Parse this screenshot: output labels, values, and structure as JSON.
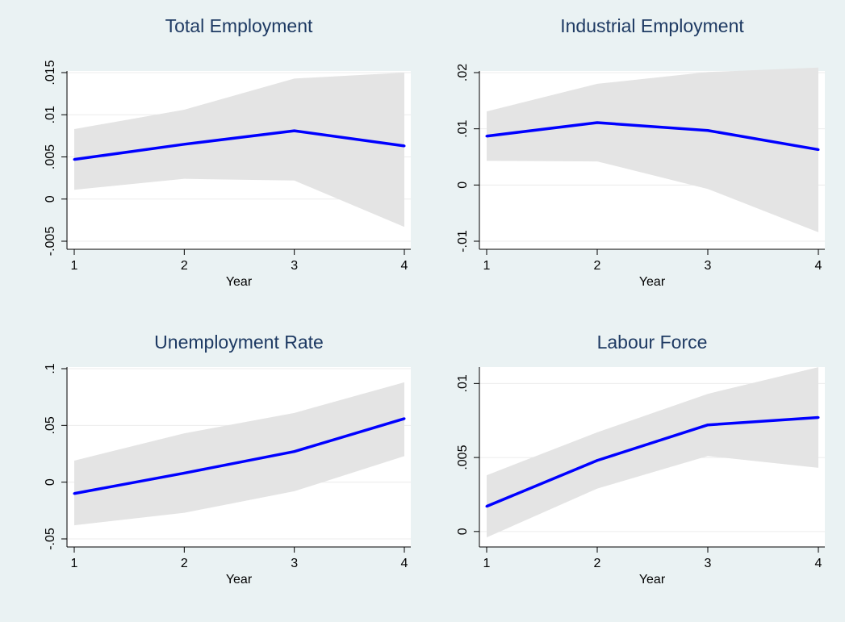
{
  "figure": {
    "colors": {
      "background": "#eaf2f3",
      "plot_area": "#ffffff",
      "line": "#0000ff",
      "band": "#e4e4e4",
      "grid": "#ececec",
      "title": "#1e3a63"
    }
  },
  "chart_data": [
    {
      "type": "line",
      "title": "Total Employment",
      "xlabel": "Year",
      "ylabel": "",
      "x": [
        1,
        2,
        3,
        4
      ],
      "x_tick_labels": [
        "1",
        "2",
        "3",
        "4"
      ],
      "ylim": [
        -0.005,
        0.015
      ],
      "y_ticks": [
        -0.005,
        0,
        0.005,
        0.01,
        0.015
      ],
      "y_tick_labels": [
        "-.005",
        "0",
        ".005",
        ".01",
        ".015"
      ],
      "grid": true,
      "series": [
        {
          "values": [
            0.0047,
            0.0065,
            0.0081,
            0.0063
          ],
          "ci_lower": [
            0.0011,
            0.0024,
            0.0022,
            -0.0033
          ],
          "ci_upper": [
            0.0083,
            0.0106,
            0.0143,
            0.015
          ]
        }
      ]
    },
    {
      "type": "line",
      "title": "Industrial Employment",
      "xlabel": "Year",
      "ylabel": "",
      "x": [
        1,
        2,
        3,
        4
      ],
      "x_tick_labels": [
        "1",
        "2",
        "3",
        "4"
      ],
      "ylim": [
        -0.01,
        0.02
      ],
      "y_ticks": [
        -0.01,
        0,
        0.01,
        0.02
      ],
      "y_tick_labels": [
        "-.01",
        "0",
        ".01",
        ".02"
      ],
      "grid": true,
      "series": [
        {
          "values": [
            0.0087,
            0.0111,
            0.0097,
            0.0063
          ],
          "ci_lower": [
            0.0043,
            0.0042,
            -0.0007,
            -0.0084
          ],
          "ci_upper": [
            0.0131,
            0.018,
            0.0201,
            0.0209
          ]
        }
      ]
    },
    {
      "type": "line",
      "title": "Unemployment Rate",
      "xlabel": "Year",
      "ylabel": "",
      "x": [
        1,
        2,
        3,
        4
      ],
      "x_tick_labels": [
        "1",
        "2",
        "3",
        "4"
      ],
      "ylim": [
        -0.05,
        0.1
      ],
      "y_ticks": [
        -0.05,
        0,
        0.05,
        0.1
      ],
      "y_tick_labels": [
        "-.05",
        "0",
        ".05",
        ".1"
      ],
      "grid": true,
      "series": [
        {
          "values": [
            -0.01,
            0.008,
            0.027,
            0.056
          ],
          "ci_lower": [
            -0.038,
            -0.027,
            -0.008,
            0.023
          ],
          "ci_upper": [
            0.019,
            0.043,
            0.061,
            0.088
          ]
        }
      ]
    },
    {
      "type": "line",
      "title": "Labour Force",
      "xlabel": "Year",
      "ylabel": "",
      "x": [
        1,
        2,
        3,
        4
      ],
      "x_tick_labels": [
        "1",
        "2",
        "3",
        "4"
      ],
      "ylim": [
        -0.0005,
        0.011
      ],
      "y_ticks": [
        0,
        0.005,
        0.01
      ],
      "y_tick_labels": [
        "0",
        ".005",
        ".01"
      ],
      "grid": true,
      "series": [
        {
          "values": [
            0.0017,
            0.0048,
            0.0072,
            0.0077
          ],
          "ci_lower": [
            -0.0004,
            0.0029,
            0.0051,
            0.0043
          ],
          "ci_upper": [
            0.0038,
            0.0067,
            0.0093,
            0.0111
          ]
        }
      ]
    }
  ]
}
